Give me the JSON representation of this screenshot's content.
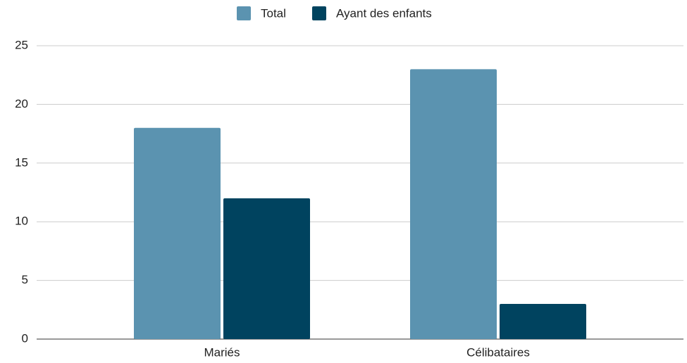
{
  "chart_data": {
    "type": "bar",
    "categories": [
      "Mariés",
      "Célibataires"
    ],
    "series": [
      {
        "name": "Total",
        "color": "#5b93b0",
        "values": [
          18,
          23
        ]
      },
      {
        "name": "Ayant des enfants",
        "color": "#00435f",
        "values": [
          12,
          3
        ]
      }
    ],
    "ylim": [
      0,
      25
    ],
    "yticks": [
      0,
      5,
      10,
      15,
      20,
      25
    ],
    "grid": true,
    "legend": "top"
  }
}
